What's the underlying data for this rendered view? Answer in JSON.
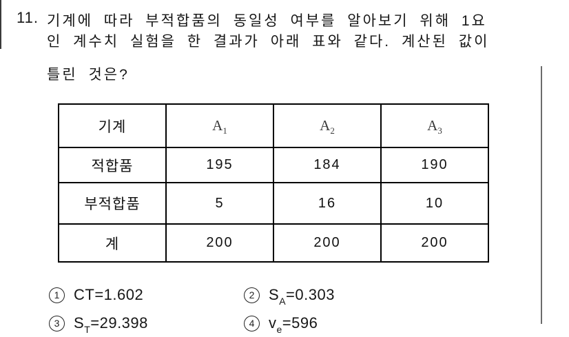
{
  "question": {
    "number": "11.",
    "line1": "기계에 따라 부적합품의 동일성 여부를 알아보기 위해 1요",
    "line2": "인 계수치 실험을 한 결과가 아래 표와 같다. 계산된 값이",
    "line3": "틀린 것은?"
  },
  "table": {
    "corner_label": "기계",
    "columns": [
      {
        "base": "A",
        "sub": "1"
      },
      {
        "base": "A",
        "sub": "2"
      },
      {
        "base": "A",
        "sub": "3"
      }
    ],
    "rows": [
      {
        "label": "적합품",
        "values": [
          "195",
          "184",
          "190"
        ]
      },
      {
        "label": "부적합품",
        "values": [
          "5",
          "16",
          "10"
        ]
      },
      {
        "label": "계",
        "values": [
          "200",
          "200",
          "200"
        ]
      }
    ]
  },
  "options": [
    {
      "num": "1",
      "base": "CT",
      "sub": "",
      "rest": "=1.602"
    },
    {
      "num": "2",
      "base": "S",
      "sub": "A",
      "rest": "=0.303"
    },
    {
      "num": "3",
      "base": "S",
      "sub": "T",
      "rest": "=29.398"
    },
    {
      "num": "4",
      "base": "v",
      "sub": "e",
      "rest": "=596"
    }
  ],
  "colors": {
    "text": "#161616",
    "table_border": "#000000",
    "column_divider": "#6b6b6b"
  }
}
